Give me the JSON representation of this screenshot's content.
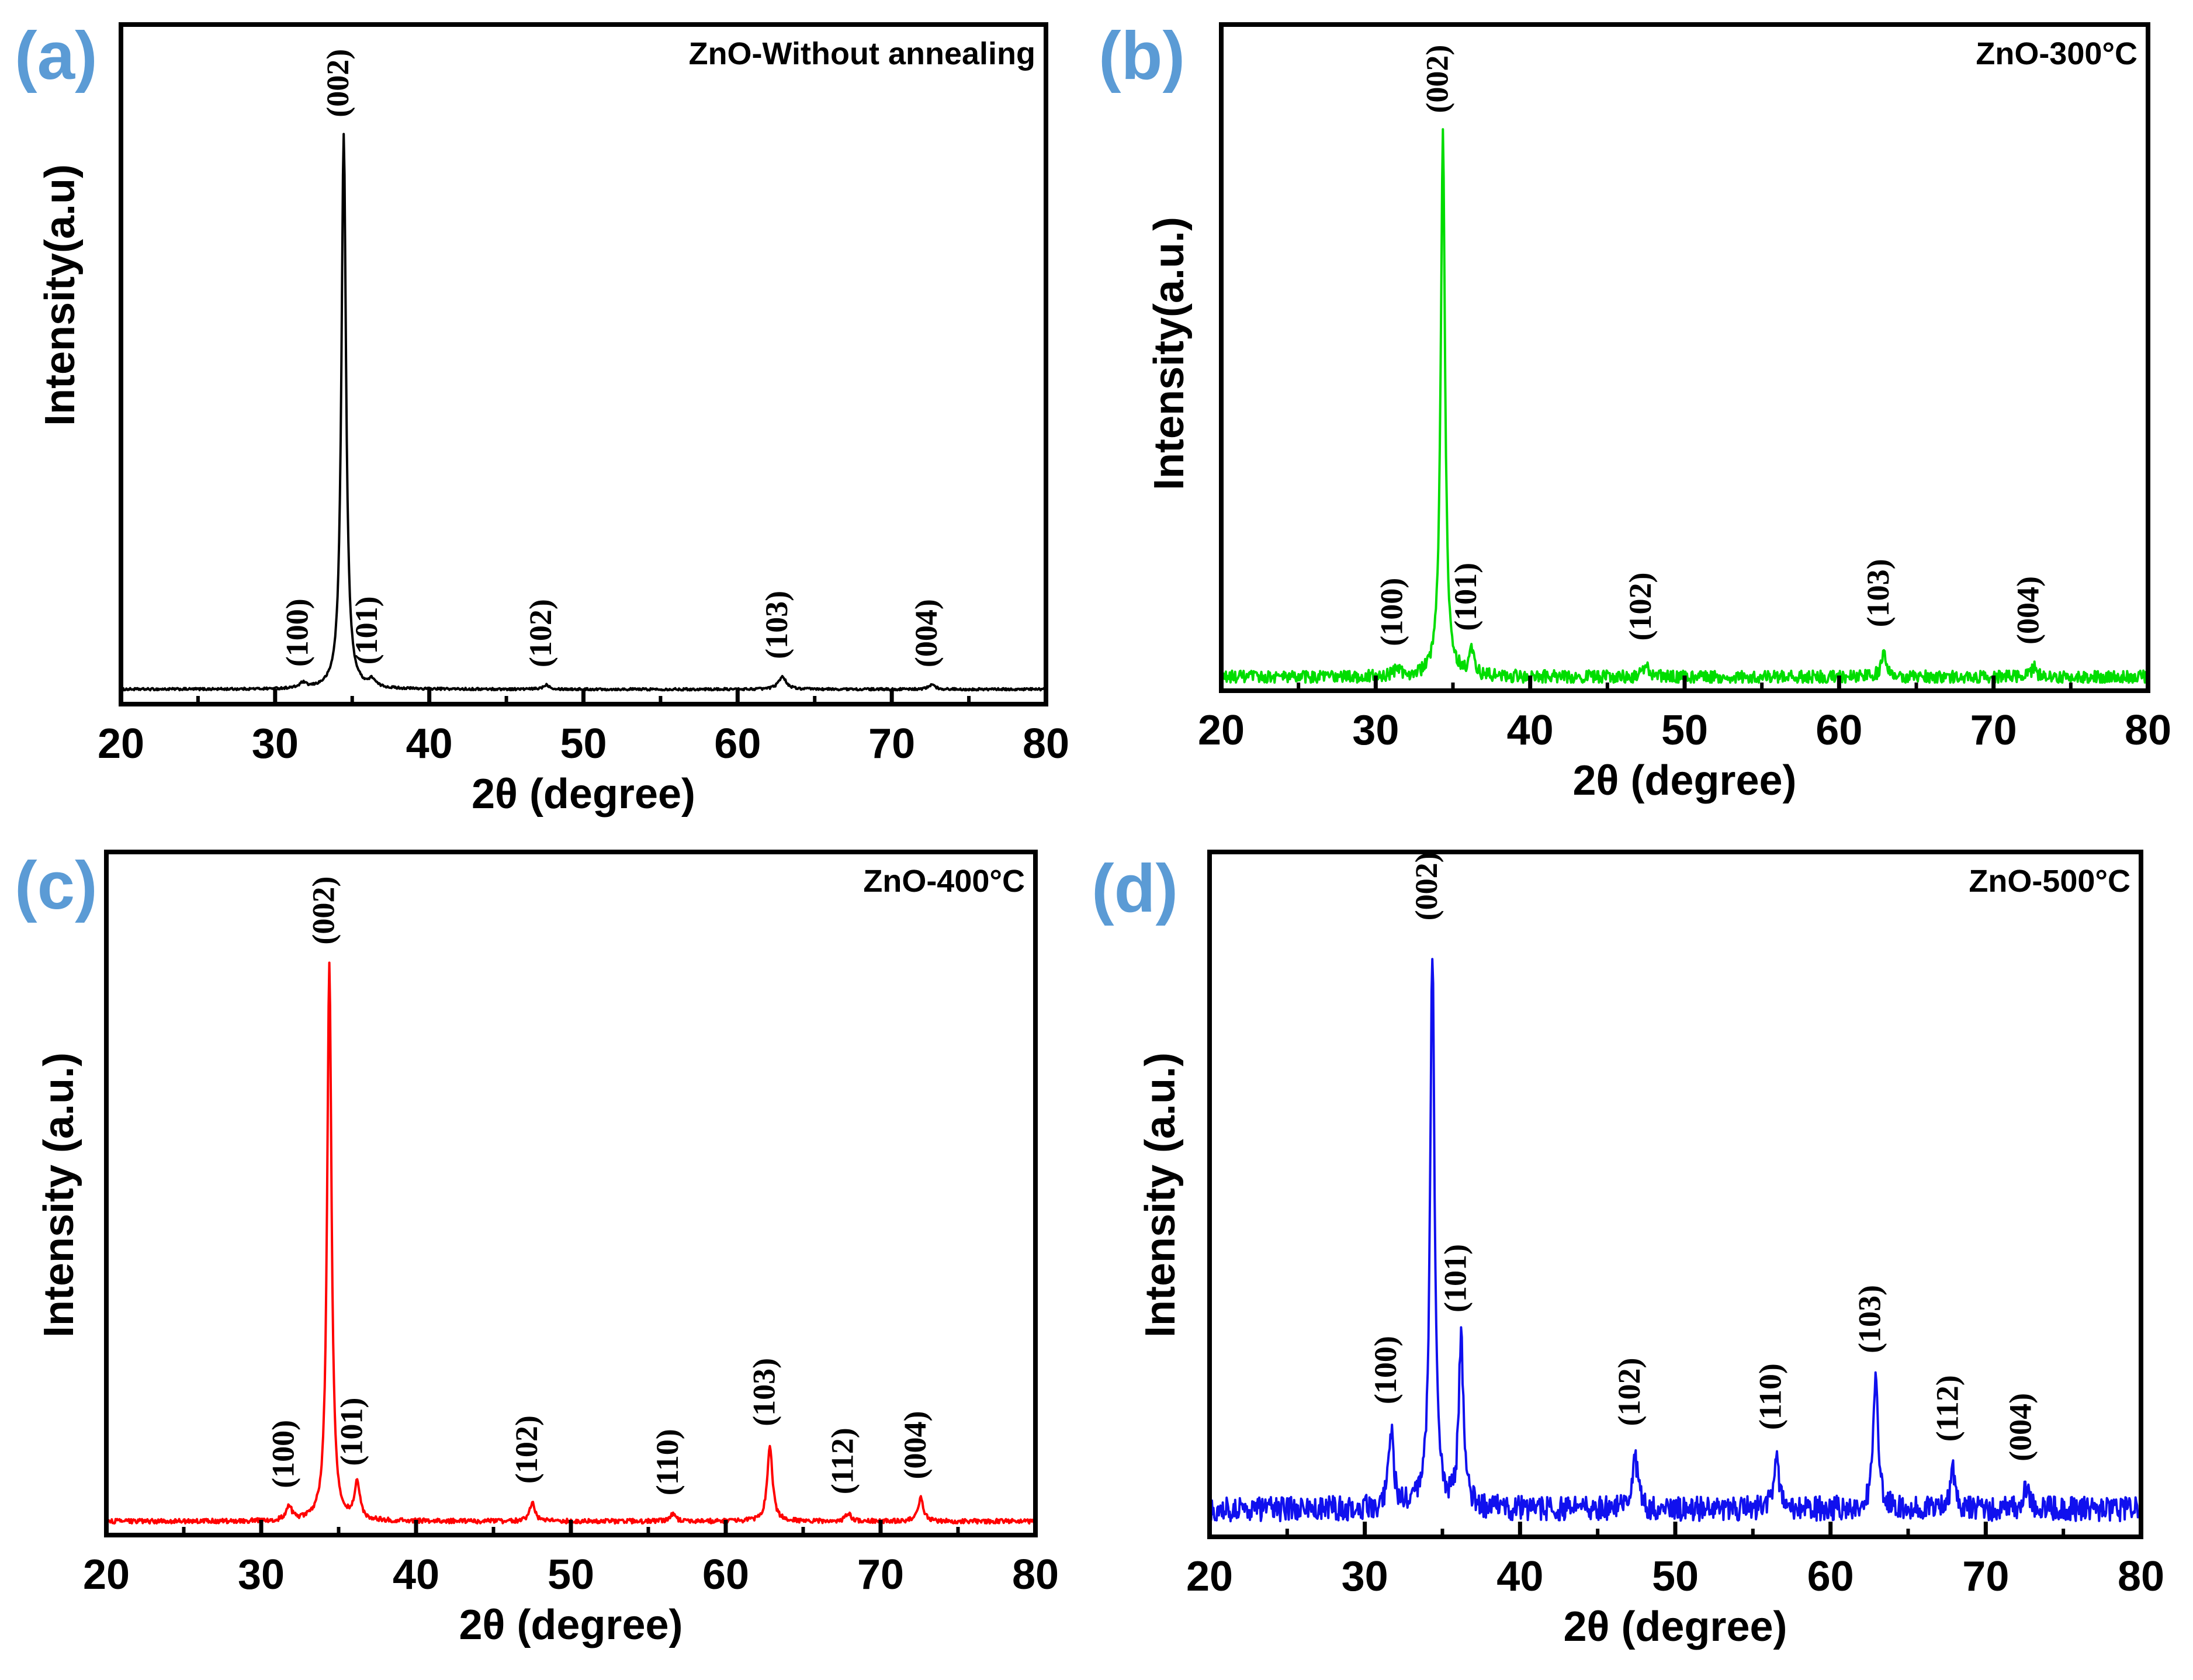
{
  "figure": {
    "description_labels": [
      "(a)",
      "(b)",
      "(c)",
      "(d)"
    ]
  },
  "chart_data": [
    {
      "type": "line",
      "panel_label": "(a)",
      "title": "ZnO-Without annealing",
      "xlabel": "2θ (degree)",
      "ylabel": "Intensity(a.u)",
      "xlim": [
        20,
        80
      ],
      "xticks": [
        20,
        30,
        40,
        50,
        60,
        70,
        80
      ],
      "ylim": [
        0,
        100
      ],
      "color": "#000000",
      "baseline": 1.2,
      "noise": 0.2,
      "peaks": [
        {
          "hkl": "(100)",
          "two_theta": 31.8,
          "height": 0.9,
          "width": 0.25
        },
        {
          "hkl": "(002)",
          "two_theta": 34.45,
          "height": 100,
          "width": 0.18
        },
        {
          "hkl": "(101)",
          "two_theta": 36.3,
          "height": 1.3,
          "width": 0.25
        },
        {
          "hkl": "(102)",
          "two_theta": 47.6,
          "height": 0.8,
          "width": 0.25
        },
        {
          "hkl": "(103)",
          "two_theta": 62.9,
          "height": 2.3,
          "width": 0.3
        },
        {
          "hkl": "(004)",
          "two_theta": 72.6,
          "height": 0.8,
          "width": 0.25
        }
      ]
    },
    {
      "type": "line",
      "panel_label": "(b)",
      "title": "ZnO-300°C",
      "xlabel": "2θ (degree)",
      "ylabel": "Intensity(a.u.)",
      "xlim": [
        20,
        80
      ],
      "xticks": [
        20,
        30,
        40,
        50,
        60,
        70,
        80
      ],
      "ylim": [
        0,
        100
      ],
      "color": "#00dd00",
      "baseline": 1.0,
      "noise": 1.2,
      "peaks": [
        {
          "hkl": "(100)",
          "two_theta": 31.4,
          "height": 1.5,
          "width": 0.25
        },
        {
          "hkl": "(002)",
          "two_theta": 34.35,
          "height": 100,
          "width": 0.17
        },
        {
          "hkl": "(101)",
          "two_theta": 36.2,
          "height": 4.3,
          "width": 0.2
        },
        {
          "hkl": "(102)",
          "two_theta": 47.5,
          "height": 2.5,
          "width": 0.2
        },
        {
          "hkl": "(103)",
          "two_theta": 62.9,
          "height": 5.0,
          "width": 0.2
        },
        {
          "hkl": "(004)",
          "two_theta": 72.6,
          "height": 1.8,
          "width": 0.2
        }
      ]
    },
    {
      "type": "line",
      "panel_label": "(c)",
      "title": "ZnO-400°C",
      "xlabel": "2θ (degree)",
      "ylabel": "Intensity (a.u.)",
      "xlim": [
        20,
        80
      ],
      "xticks": [
        20,
        30,
        40,
        50,
        60,
        70,
        80
      ],
      "ylim": [
        0,
        100
      ],
      "color": "#ff0000",
      "baseline": 1.0,
      "noise": 0.4,
      "peaks": [
        {
          "hkl": "(100)",
          "two_theta": 31.8,
          "height": 2.6,
          "width": 0.2
        },
        {
          "hkl": "(002)",
          "two_theta": 34.4,
          "height": 100,
          "width": 0.17
        },
        {
          "hkl": "(101)",
          "two_theta": 36.2,
          "height": 6.6,
          "width": 0.2
        },
        {
          "hkl": "(102)",
          "two_theta": 47.5,
          "height": 3.4,
          "width": 0.2
        },
        {
          "hkl": "(110)",
          "two_theta": 56.6,
          "height": 1.3,
          "width": 0.2
        },
        {
          "hkl": "(103)",
          "two_theta": 62.85,
          "height": 13.7,
          "width": 0.2
        },
        {
          "hkl": "(112)",
          "two_theta": 67.9,
          "height": 1.5,
          "width": 0.2
        },
        {
          "hkl": "(004)",
          "two_theta": 72.6,
          "height": 4.2,
          "width": 0.2
        }
      ]
    },
    {
      "type": "line",
      "panel_label": "(d)",
      "title": "ZnO-500°C",
      "xlabel": "2θ (degree)",
      "ylabel": "Intensity (a.u.)",
      "xlim": [
        20,
        80
      ],
      "xticks": [
        20,
        30,
        40,
        50,
        60,
        70,
        80
      ],
      "ylim": [
        0,
        100
      ],
      "color": "#1010ee",
      "baseline": 3.5,
      "noise": 2.2,
      "peaks": [
        {
          "hkl": "(100)",
          "two_theta": 31.7,
          "height": 13.6,
          "width": 0.2
        },
        {
          "hkl": "(002)",
          "two_theta": 34.35,
          "height": 100,
          "width": 0.17
        },
        {
          "hkl": "(101)",
          "two_theta": 36.2,
          "height": 30,
          "width": 0.18
        },
        {
          "hkl": "(102)",
          "two_theta": 47.4,
          "height": 9.7,
          "width": 0.2
        },
        {
          "hkl": "(110)",
          "two_theta": 56.5,
          "height": 9.0,
          "width": 0.2
        },
        {
          "hkl": "(103)",
          "two_theta": 62.9,
          "height": 22.7,
          "width": 0.2
        },
        {
          "hkl": "(112)",
          "two_theta": 67.9,
          "height": 6.9,
          "width": 0.2
        },
        {
          "hkl": "(004)",
          "two_theta": 72.6,
          "height": 3.4,
          "width": 0.2
        }
      ]
    }
  ]
}
